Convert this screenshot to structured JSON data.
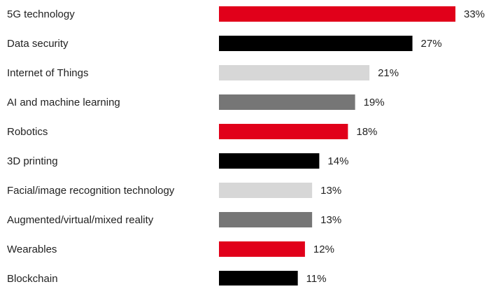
{
  "chart_data": {
    "type": "bar",
    "orientation": "horizontal",
    "categories": [
      "5G technology",
      "Data security",
      "Internet of Things",
      "AI and machine learning",
      "Robotics",
      "3D printing",
      "Facial/image recognition technology",
      "Augmented/virtual/mixed reality",
      "Wearables",
      "Blockchain"
    ],
    "values": [
      33,
      27,
      21,
      19,
      18,
      14,
      13,
      13,
      12,
      11
    ],
    "value_labels": [
      "33%",
      "27%",
      "21%",
      "19%",
      "18%",
      "14%",
      "13%",
      "13%",
      "12%",
      "11%"
    ],
    "bar_colors": [
      "#e1001a",
      "#000000",
      "#d7d7d7",
      "#767676",
      "#e1001a",
      "#000000",
      "#d7d7d7",
      "#767676",
      "#e1001a",
      "#000000"
    ],
    "unit": "%",
    "xlim": [
      0,
      33
    ],
    "grid": false,
    "legend": "none",
    "title": "",
    "xlabel": "",
    "ylabel": ""
  }
}
